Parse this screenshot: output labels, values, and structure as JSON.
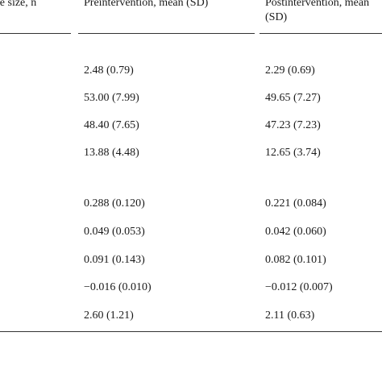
{
  "headers": {
    "sample_size": "mple size, n",
    "preintervention": "Preintervention, mean (SD)",
    "postintervention": "Postintervention, mean (SD)"
  },
  "rows": [
    {
      "pre": "2.48 (0.79)",
      "post": "2.29 (0.69)"
    },
    {
      "pre": "53.00 (7.99)",
      "post": "49.65 (7.27)"
    },
    {
      "pre": "48.40 (7.65)",
      "post": "47.23 (7.23)"
    },
    {
      "pre": "13.88 (4.48)",
      "post": "12.65 (3.74)"
    },
    {
      "pre": "0.288 (0.120)",
      "post": "0.221 (0.084)"
    },
    {
      "pre": "0.049 (0.053)",
      "post": "0.042 (0.060)"
    },
    {
      "pre": "0.091 (0.143)",
      "post": "0.082 (0.101)"
    },
    {
      "pre": "−0.016 (0.010)",
      "post": "−0.012 (0.007)"
    },
    {
      "pre": "2.60 (1.21)",
      "post": "2.11 (0.63)"
    }
  ]
}
